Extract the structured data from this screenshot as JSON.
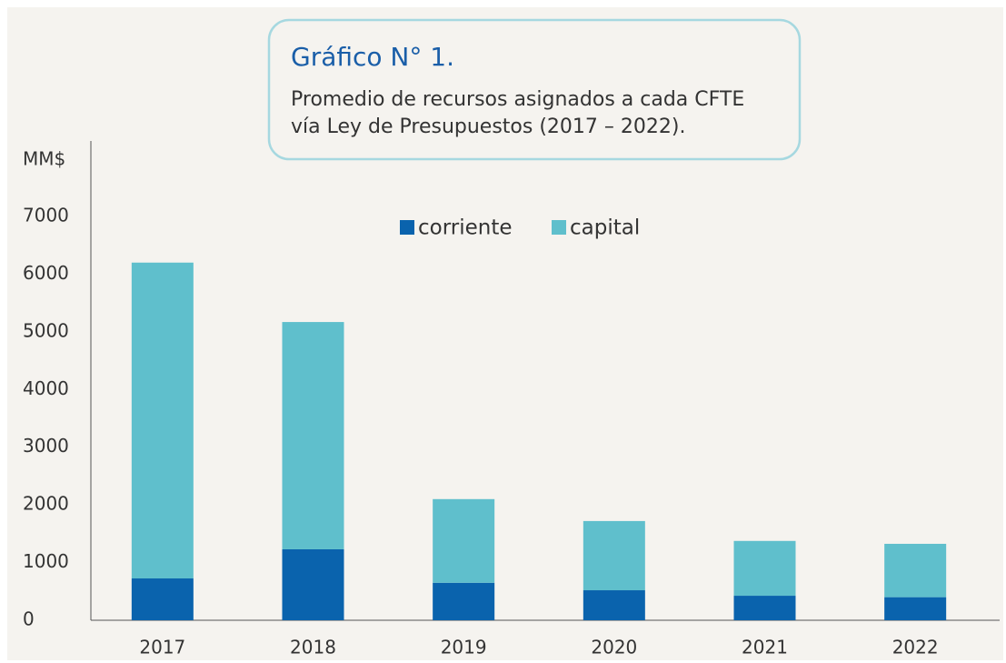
{
  "chart_data": {
    "type": "stacked_bar",
    "title": "Gráfico N° 1.",
    "subtitle": [
      "Promedio de recursos asignados a cada CFTE",
      "vía Ley de Presupuestos (2017 – 2022)."
    ],
    "y_label": "MM$",
    "categories": [
      "2017",
      "2018",
      "2019",
      "2020",
      "2021",
      "2022"
    ],
    "series": [
      {
        "name": "corriente",
        "color": "#0a63ad",
        "values": [
          725,
          1230,
          650,
          520,
          425,
          400
        ]
      },
      {
        "name": "capital",
        "color": "#5fbfcc",
        "values": [
          5475,
          3940,
          1450,
          1200,
          950,
          925
        ]
      }
    ],
    "ylim": [
      0,
      7000
    ],
    "yticks": [
      0,
      1000,
      2000,
      3000,
      4000,
      5000,
      6000,
      7000
    ],
    "grid": false,
    "legend": "top"
  }
}
